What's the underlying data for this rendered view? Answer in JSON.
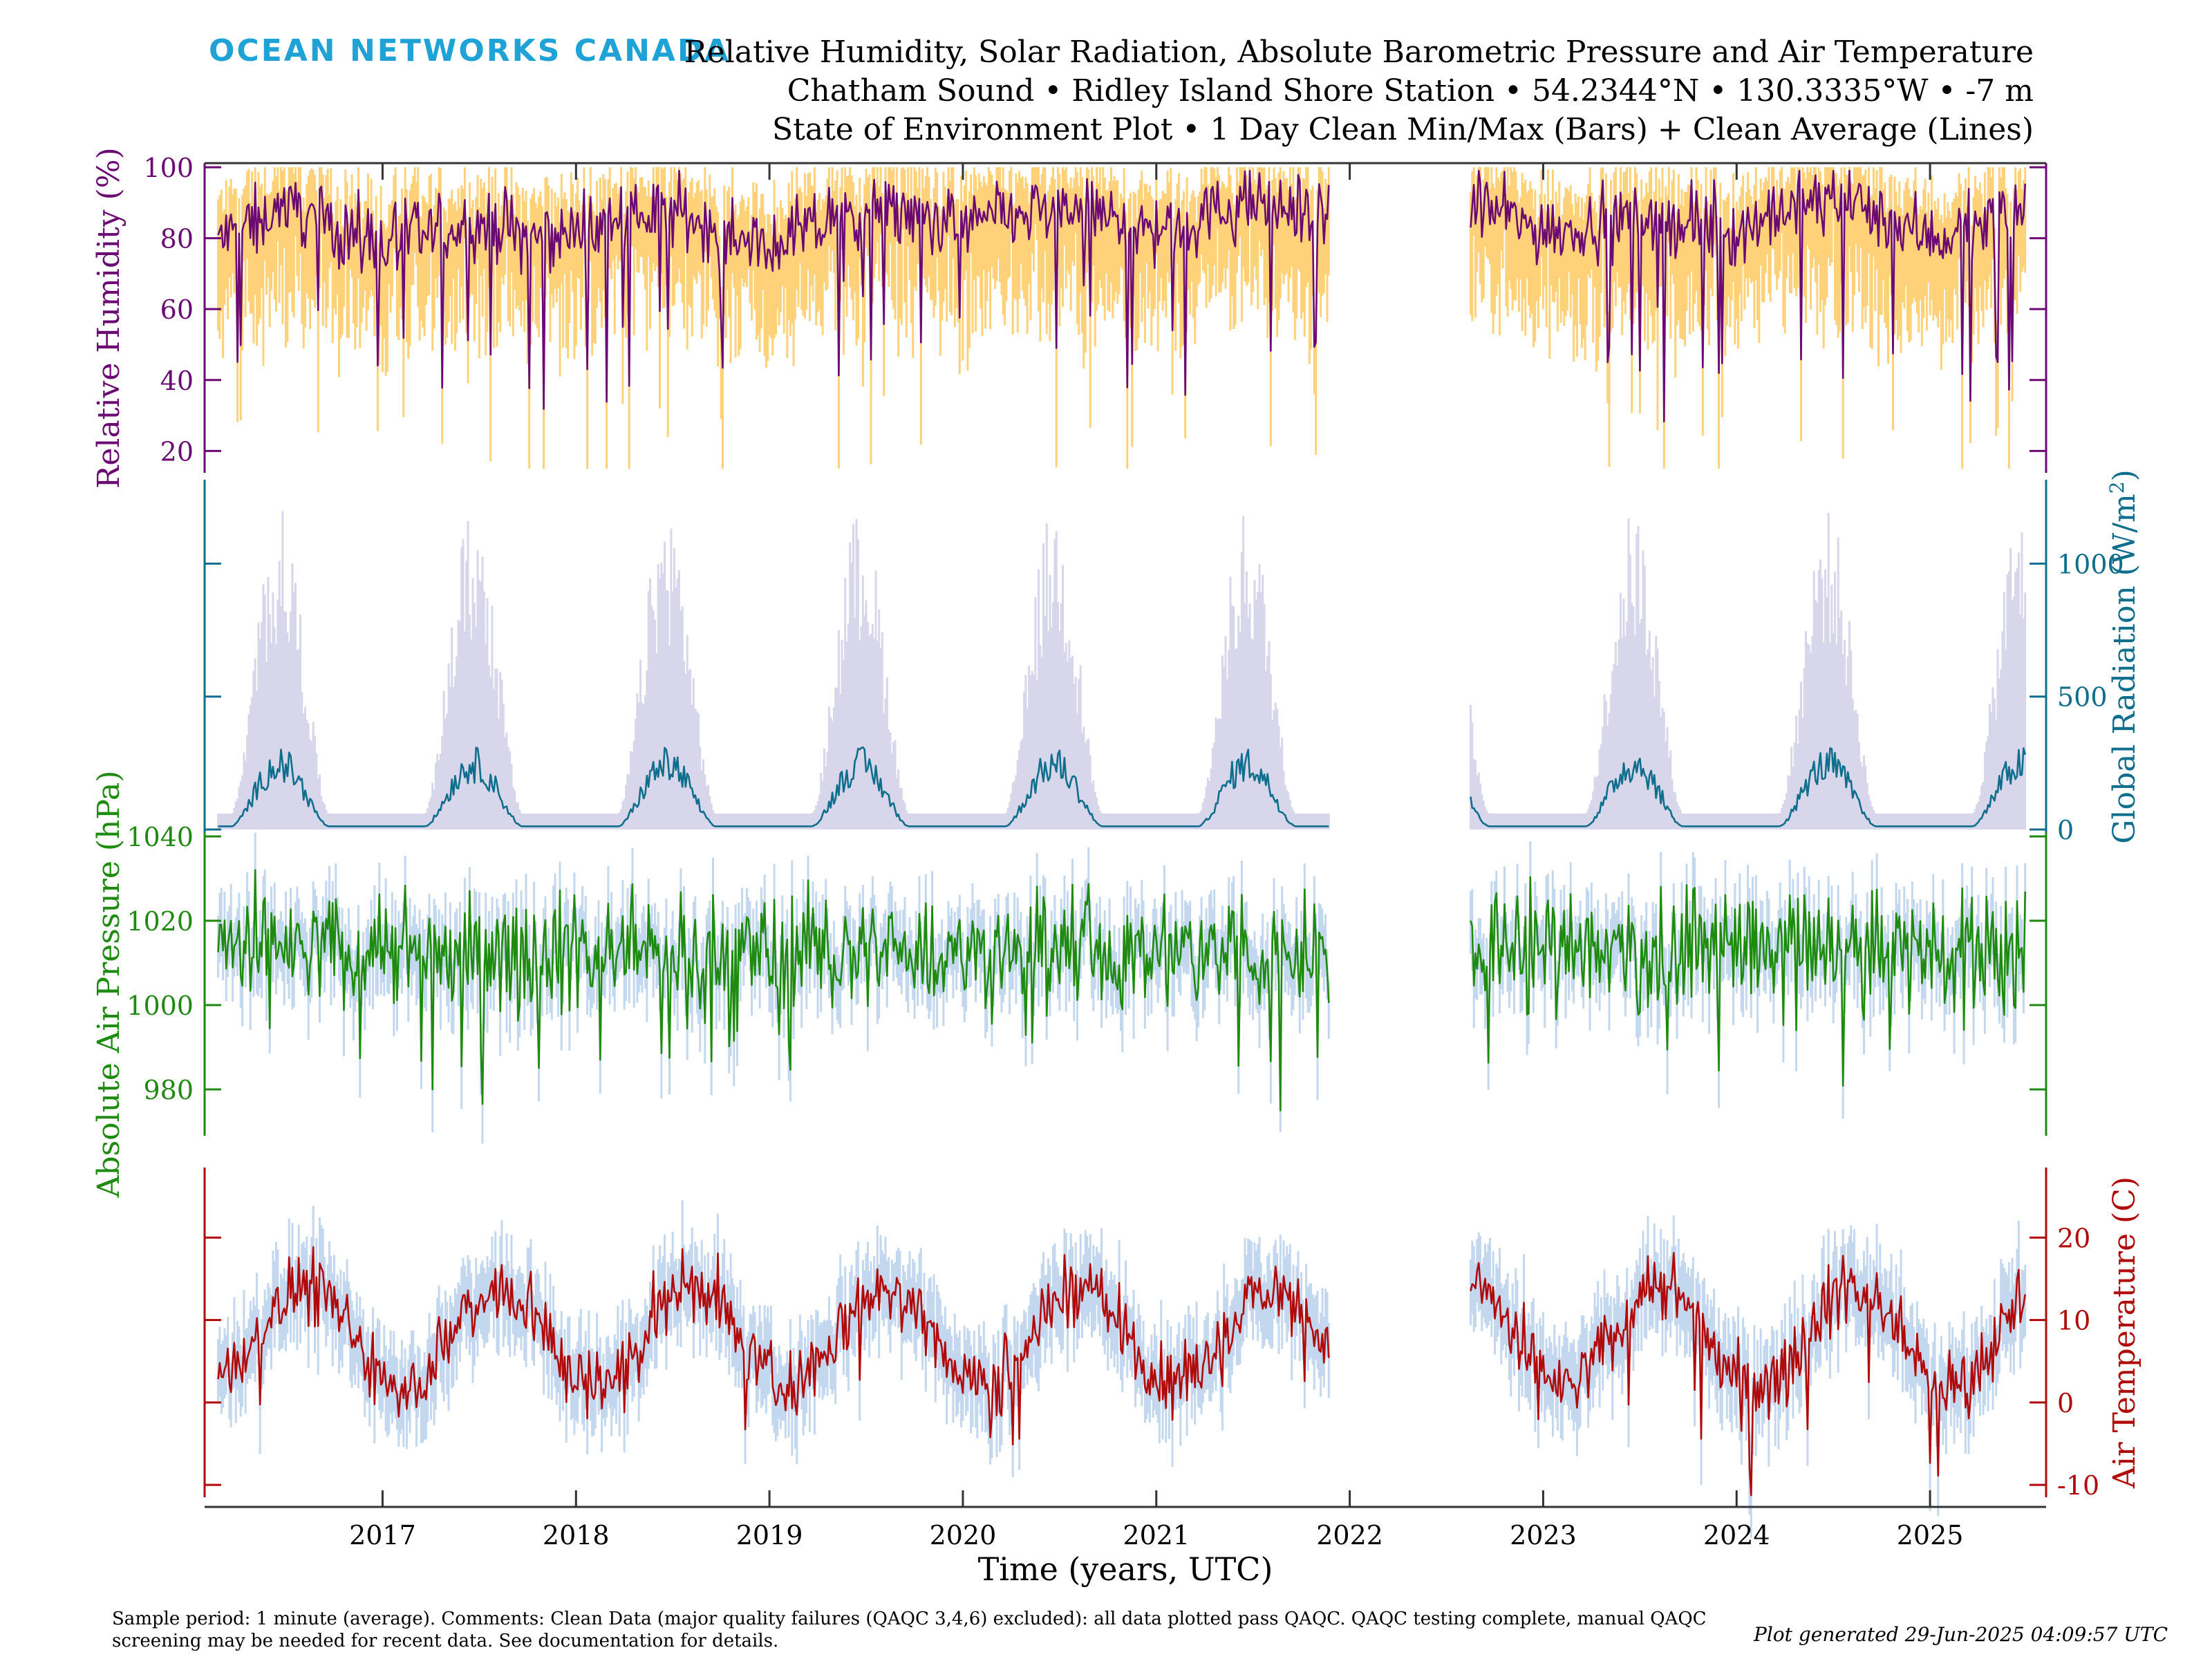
{
  "header": {
    "logo": "OCEAN NETWORKS CANADA",
    "title_lines": [
      "Relative Humidity, Solar Radiation, Absolute Barometric Pressure and Air Temperature",
      "Chatham Sound • Ridley Island Shore Station • 54.2344°N • 130.3335°W • -7 m",
      "State of Environment Plot • 1 Day Clean Min/Max (Bars) + Clean Average (Lines)"
    ]
  },
  "footer": {
    "comment": "Sample period: 1 minute (average). Comments: Clean Data (major quality failures (QAQC 3,4,6) excluded): all data plotted pass QAQC. QAQC testing complete, manual QAQC screening may be needed for recent data. See documentation for details.",
    "generated": "Plot generated 29-Jun-2025 04:09:57 UTC"
  },
  "colors": {
    "humidity_line": "#6a0a72",
    "humidity_bars": "#ffd27a",
    "radiation_line": "#0f6e8c",
    "radiation_bars": "#d8d6ea",
    "pressure_line": "#1e8a10",
    "pressure_bars": "#c3d8ee",
    "temperature_line": "#b00a0a",
    "temperature_bars": "#c3d8ee"
  },
  "chart_data": {
    "type": "line",
    "xlabel": "Time (years, UTC)",
    "x_tick_labels": [
      "2017",
      "2018",
      "2019",
      "2020",
      "2021",
      "2022",
      "2023",
      "2024",
      "2025"
    ],
    "xlim": [
      2016.08,
      2025.6
    ],
    "data_gap": [
      2021.9,
      2022.62
    ],
    "series_start": 2016.15,
    "series_end": 2025.5,
    "panels": [
      {
        "name": "humidity",
        "ylabel": "Relative Humidity (%)",
        "axis_side": "left",
        "ylim": [
          15,
          100
        ],
        "yticks": [
          20,
          40,
          60,
          80,
          100
        ],
        "tick_labels": [
          "20",
          "40",
          "60",
          "80",
          "100"
        ],
        "seasonal_average": [
          [
            2016.2,
            80
          ],
          [
            2016.5,
            90
          ],
          [
            2016.8,
            82
          ],
          [
            2017.0,
            78
          ],
          [
            2017.5,
            84
          ],
          [
            2017.8,
            80
          ],
          [
            2018.0,
            82
          ],
          [
            2018.5,
            88
          ],
          [
            2018.8,
            80
          ],
          [
            2019.0,
            78
          ],
          [
            2019.5,
            88
          ],
          [
            2019.8,
            86
          ],
          [
            2020.0,
            84
          ],
          [
            2020.5,
            88
          ],
          [
            2020.8,
            86
          ],
          [
            2021.0,
            82
          ],
          [
            2021.5,
            90
          ],
          [
            2021.85,
            86
          ],
          [
            2022.65,
            90
          ],
          [
            2023.0,
            82
          ],
          [
            2023.5,
            86
          ],
          [
            2023.8,
            84
          ],
          [
            2024.0,
            82
          ],
          [
            2024.5,
            92
          ],
          [
            2024.8,
            86
          ],
          [
            2025.0,
            80
          ],
          [
            2025.5,
            88
          ]
        ],
        "variation": 7,
        "band_width": 10
      },
      {
        "name": "radiation",
        "ylabel": "Global Radiation (W/m2)",
        "axis_side": "right",
        "ylim": [
          0,
          1300
        ],
        "yticks": [
          0,
          500,
          1000
        ],
        "tick_labels": [
          "0",
          "500",
          "1000"
        ],
        "annual_peak_average": 250,
        "annual_peak_max": 1150,
        "peak_fraction_of_year": 0.47
      },
      {
        "name": "pressure",
        "ylabel": "Absolute Air Pressure (hPa)",
        "axis_side": "left",
        "ylim": [
          970,
          1040
        ],
        "yticks": [
          980,
          1000,
          1020,
          1040
        ],
        "tick_labels": [
          "980",
          "1000",
          "1020",
          "1040"
        ],
        "mean": 1013,
        "variation": 12,
        "band_width": 5
      },
      {
        "name": "temperature",
        "ylabel": "Air Temperature (C)",
        "axis_side": "right",
        "ylim": [
          -11,
          28
        ],
        "yticks": [
          -10,
          0,
          10,
          20
        ],
        "tick_labels": [
          "-10",
          "0",
          "10",
          "20"
        ],
        "annual_mean": 8,
        "annual_amplitude": 6,
        "warmest_fraction_of_year": 0.6,
        "variation": 3,
        "band_width": 3
      }
    ]
  }
}
